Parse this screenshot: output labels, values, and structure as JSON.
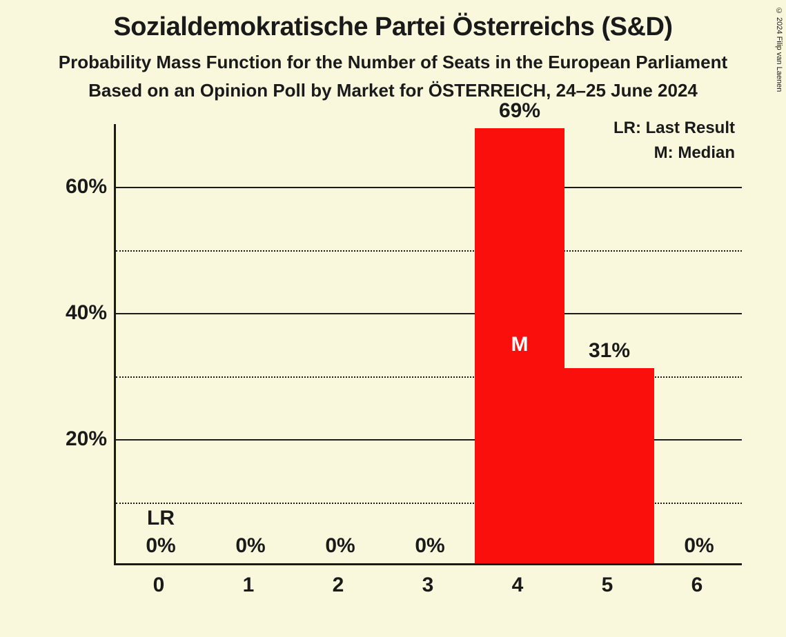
{
  "title": "Sozialdemokratische Partei Österreichs (S&D)",
  "subtitle1": "Probability Mass Function for the Number of Seats in the European Parliament",
  "subtitle2": "Based on an Opinion Poll by Market for ÖSTERREICH, 24–25 June 2024",
  "copyright": "© 2024 Filip van Laenen",
  "legend": {
    "lr": "LR: Last Result",
    "m": "M: Median"
  },
  "chart": {
    "type": "bar",
    "background_color": "#f9f8dc",
    "bar_color": "#fa0f0c",
    "axis_color": "#1a1a1a",
    "grid_major_color": "#1a1a1a",
    "grid_minor_color": "#1a1a1a",
    "text_color": "#1a1a1a",
    "median_label_color": "#ffffff",
    "title_fontsize": 38,
    "subtitle_fontsize": 26,
    "axis_label_fontsize": 30,
    "value_label_fontsize": 30,
    "legend_fontsize": 24,
    "bar_width_ratio": 1.0,
    "ylim": [
      0,
      70
    ],
    "y_major_ticks": [
      20,
      40,
      60
    ],
    "y_minor_ticks": [
      10,
      30,
      50
    ],
    "y_tick_labels": {
      "20": "20%",
      "40": "40%",
      "60": "60%"
    },
    "categories": [
      "0",
      "1",
      "2",
      "3",
      "4",
      "5",
      "6"
    ],
    "values": [
      0,
      0,
      0,
      0,
      69,
      31,
      0
    ],
    "value_labels": [
      "0%",
      "0%",
      "0%",
      "0%",
      "69%",
      "31%",
      "0%"
    ],
    "lr_index": 0,
    "lr_text": "LR",
    "median_index": 4,
    "median_text": "M"
  }
}
